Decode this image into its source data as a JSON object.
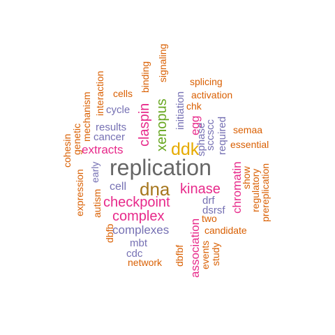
{
  "palette": {
    "orange": "#d95f02",
    "slate": "#7570b3",
    "magenta": "#e7298a",
    "green": "#66a61e",
    "gold": "#e6ab02",
    "brown": "#a6761d",
    "gray": "#666666"
  },
  "words": [
    {
      "text": "replication",
      "color": "gray"
    },
    {
      "text": "dna",
      "color": "brown"
    },
    {
      "text": "ddk",
      "color": "gold"
    },
    {
      "text": "checkpoint",
      "color": "magenta"
    },
    {
      "text": "complex",
      "color": "magenta"
    },
    {
      "text": "kinase",
      "color": "magenta"
    },
    {
      "text": "xenopus",
      "color": "green"
    },
    {
      "text": "claspin",
      "color": "magenta"
    },
    {
      "text": "extracts",
      "color": "magenta"
    },
    {
      "text": "complexes",
      "color": "slate"
    },
    {
      "text": "association",
      "color": "magenta"
    },
    {
      "text": "chromatin",
      "color": "magenta"
    },
    {
      "text": "egg",
      "color": "magenta"
    },
    {
      "text": "cell",
      "color": "slate"
    },
    {
      "text": "cycle",
      "color": "slate"
    },
    {
      "text": "results",
      "color": "slate"
    },
    {
      "text": "cancer",
      "color": "slate"
    },
    {
      "text": "initiation",
      "color": "slate"
    },
    {
      "text": "sphase",
      "color": "slate"
    },
    {
      "text": "sccscc",
      "color": "slate"
    },
    {
      "text": "mbt",
      "color": "slate"
    },
    {
      "text": "cdc",
      "color": "slate"
    },
    {
      "text": "drf",
      "color": "slate"
    },
    {
      "text": "dsrsf",
      "color": "slate"
    },
    {
      "text": "required",
      "color": "slate"
    },
    {
      "text": "early",
      "color": "slate"
    },
    {
      "text": "autism",
      "color": "orange"
    },
    {
      "text": "cells",
      "color": "orange"
    },
    {
      "text": "binding",
      "color": "orange"
    },
    {
      "text": "signaling",
      "color": "orange"
    },
    {
      "text": "interaction",
      "color": "orange"
    },
    {
      "text": "mechanism",
      "color": "orange"
    },
    {
      "text": "genetic",
      "color": "orange"
    },
    {
      "text": "cohesin",
      "color": "orange"
    },
    {
      "text": "expression",
      "color": "orange"
    },
    {
      "text": "splicing",
      "color": "orange"
    },
    {
      "text": "activation",
      "color": "orange"
    },
    {
      "text": "chk",
      "color": "orange"
    },
    {
      "text": "semaa",
      "color": "orange"
    },
    {
      "text": "essential",
      "color": "orange"
    },
    {
      "text": "show",
      "color": "orange"
    },
    {
      "text": "regulatory",
      "color": "orange"
    },
    {
      "text": "prereplication",
      "color": "orange"
    },
    {
      "text": "two",
      "color": "orange"
    },
    {
      "text": "candidate",
      "color": "orange"
    },
    {
      "text": "study",
      "color": "orange"
    },
    {
      "text": "events",
      "color": "orange"
    },
    {
      "text": "dbfbf",
      "color": "orange"
    },
    {
      "text": "network",
      "color": "orange"
    },
    {
      "text": "dbfb",
      "color": "orange"
    }
  ]
}
